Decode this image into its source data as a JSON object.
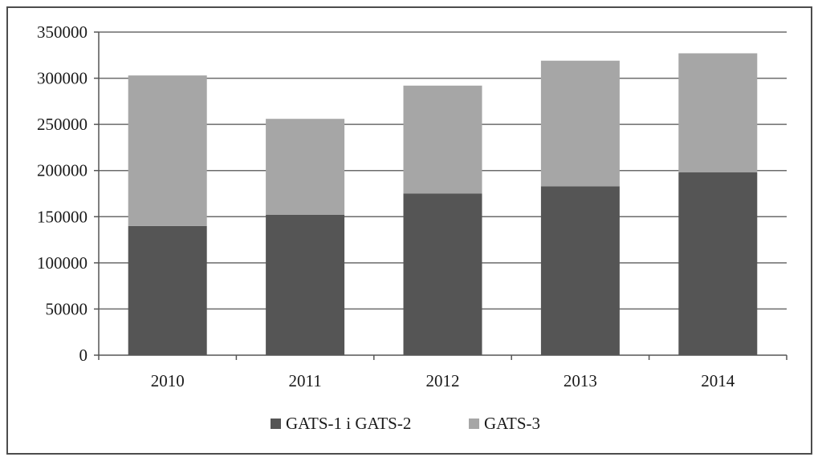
{
  "chart_data": {
    "type": "bar",
    "stacked": true,
    "categories": [
      "2010",
      "2011",
      "2012",
      "2013",
      "2014"
    ],
    "series": [
      {
        "name": "GATS-1 i GATS-2",
        "values": [
          140000,
          152000,
          175000,
          183000,
          198000
        ],
        "color": "#555555"
      },
      {
        "name": "GATS-3",
        "values": [
          163000,
          104000,
          117000,
          136000,
          129000
        ],
        "color": "#a6a6a6"
      }
    ],
    "title": "",
    "xlabel": "",
    "ylabel": "",
    "ylim": [
      0,
      350000
    ],
    "yticks": [
      0,
      50000,
      100000,
      150000,
      200000,
      250000,
      300000,
      350000
    ],
    "ytick_labels": [
      "0",
      "50000",
      "100000",
      "150000",
      "200000",
      "250000",
      "300000",
      "350000"
    ],
    "grid": true,
    "legend_position": "bottom-center"
  }
}
